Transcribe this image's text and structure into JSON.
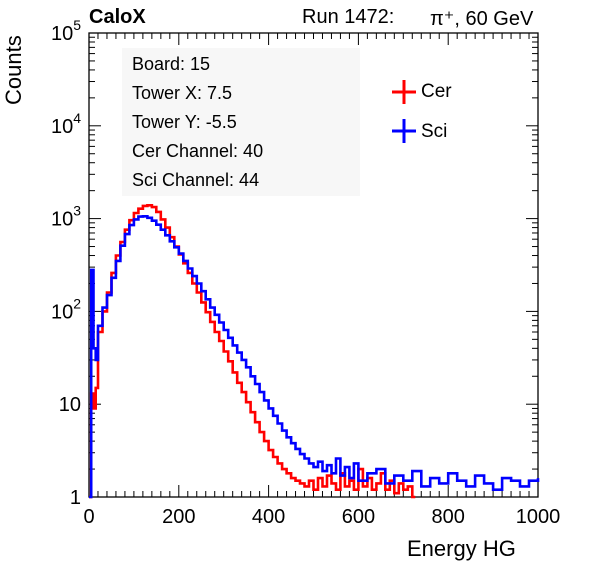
{
  "header": {
    "experiment": "CaloX",
    "run": "Run 1472:",
    "beam": "π⁺, 60 GeV"
  },
  "info_box": {
    "lines": [
      "Board: 15",
      "Tower X: 7.5",
      "Tower Y: -5.5",
      "Cer Channel: 40",
      "Sci Channel: 44"
    ]
  },
  "legend": {
    "entries": [
      {
        "name": "Cer",
        "color": "#ff0000"
      },
      {
        "name": "Sci",
        "color": "#0000ff"
      }
    ]
  },
  "chart_data": {
    "type": "line",
    "xlabel": "Energy HG",
    "ylabel": "Counts",
    "xlim": [
      0,
      1000
    ],
    "ylim": [
      1,
      100000
    ],
    "y_scale": "log",
    "x_ticks": [
      "0",
      "200",
      "400",
      "600",
      "800",
      "1000"
    ],
    "y_ticks": [
      "1",
      "10",
      "10^2",
      "10^3",
      "10^4",
      "10^5"
    ],
    "series": [
      {
        "name": "Cer",
        "color": "#ff0000",
        "x": [
          0,
          5,
          10,
          15,
          20,
          30,
          40,
          50,
          60,
          70,
          80,
          90,
          100,
          110,
          120,
          130,
          140,
          150,
          160,
          170,
          180,
          190,
          200,
          210,
          220,
          230,
          240,
          250,
          260,
          270,
          280,
          290,
          300,
          310,
          320,
          330,
          340,
          350,
          360,
          370,
          380,
          390,
          400,
          410,
          420,
          430,
          440,
          450,
          460,
          470,
          480,
          490,
          500,
          510,
          520,
          530,
          540,
          550,
          560,
          570,
          580,
          590,
          600,
          610,
          620,
          630,
          640,
          650,
          660,
          670,
          680,
          690,
          700,
          710,
          720
        ],
        "y": [
          1,
          13,
          9,
          15,
          60,
          100,
          160,
          260,
          400,
          560,
          760,
          960,
          1150,
          1280,
          1370,
          1390,
          1330,
          1180,
          980,
          800,
          630,
          500,
          410,
          330,
          260,
          200,
          160,
          125,
          98,
          77,
          60,
          48,
          37,
          29,
          22,
          17,
          13.5,
          10.5,
          8.2,
          6.4,
          5,
          4,
          3.2,
          2.7,
          2.3,
          2,
          1.8,
          1.6,
          1.5,
          1.4,
          1.3,
          1.5,
          1.2,
          1.6,
          1.3,
          1.7,
          1.4,
          1.2,
          1.8,
          1.3,
          1.5,
          1.2,
          2,
          1.3,
          1.6,
          1.2,
          1.4,
          1.8,
          1.2,
          1.5,
          1.1,
          1.4,
          1.2,
          1.3,
          1
        ]
      },
      {
        "name": "Sci",
        "color": "#0000ff",
        "x": [
          0,
          5,
          10,
          15,
          20,
          30,
          40,
          50,
          60,
          70,
          80,
          90,
          100,
          110,
          120,
          130,
          140,
          150,
          160,
          170,
          180,
          190,
          200,
          210,
          220,
          230,
          240,
          250,
          260,
          270,
          280,
          290,
          300,
          310,
          320,
          330,
          340,
          350,
          360,
          370,
          380,
          390,
          400,
          410,
          420,
          430,
          440,
          450,
          460,
          470,
          480,
          490,
          500,
          510,
          520,
          530,
          540,
          550,
          560,
          570,
          580,
          590,
          600,
          620,
          640,
          660,
          680,
          700,
          720,
          740,
          760,
          780,
          800,
          820,
          840,
          860,
          880,
          900,
          920,
          940,
          960,
          980,
          1000
        ],
        "y": [
          1,
          280,
          40,
          30,
          70,
          110,
          150,
          230,
          350,
          510,
          680,
          850,
          980,
          1050,
          1060,
          1020,
          950,
          860,
          760,
          660,
          570,
          490,
          420,
          350,
          290,
          240,
          200,
          165,
          135,
          110,
          92,
          76,
          63,
          52,
          43,
          36,
          30,
          25,
          20,
          16.5,
          13.5,
          11,
          9,
          7.5,
          6.2,
          5.2,
          4.4,
          3.8,
          3.3,
          2.9,
          2.6,
          2.3,
          2.1,
          2.4,
          1.9,
          2.2,
          1.8,
          2.6,
          1.7,
          2.1,
          1.6,
          2.3,
          1.5,
          1.8,
          2,
          1.4,
          1.7,
          1.5,
          1.9,
          1.3,
          1.6,
          1.4,
          1.8,
          1.5,
          1.3,
          1.7,
          1.4,
          1.2,
          1.6,
          1.5,
          1.3,
          1.5,
          1.6
        ]
      }
    ]
  }
}
